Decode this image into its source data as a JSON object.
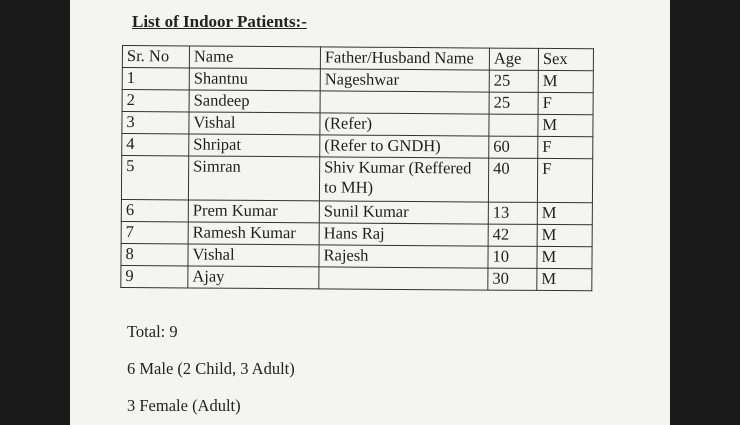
{
  "title": "List of Indoor Patients:-",
  "table": {
    "headers": [
      "Sr. No",
      "Name",
      "Father/Husband Name",
      "Age",
      "Sex"
    ],
    "rows": [
      [
        "1",
        "Shantnu",
        "Nageshwar",
        "25",
        "M"
      ],
      [
        "2",
        "Sandeep",
        "",
        "25",
        "F"
      ],
      [
        "3",
        "Vishal",
        "(Refer)",
        "",
        "M"
      ],
      [
        "4",
        "Shripat",
        "(Refer to GNDH)",
        "60",
        "F"
      ],
      [
        "5",
        "Simran",
        "Shiv Kumar (Reffered to MH)",
        "40",
        "F"
      ],
      [
        "6",
        "Prem Kumar",
        "Sunil Kumar",
        "13",
        "M"
      ],
      [
        "7",
        "Ramesh Kumar",
        "Hans Raj",
        "42",
        "M"
      ],
      [
        "8",
        "Vishal",
        "Rajesh",
        "10",
        "M"
      ],
      [
        "9",
        "Ajay",
        "",
        "30",
        "M"
      ]
    ]
  },
  "summary": {
    "total": "Total: 9",
    "male": "6  Male (2 Child, 3 Adult)",
    "female": "3 Female (Adult)"
  }
}
